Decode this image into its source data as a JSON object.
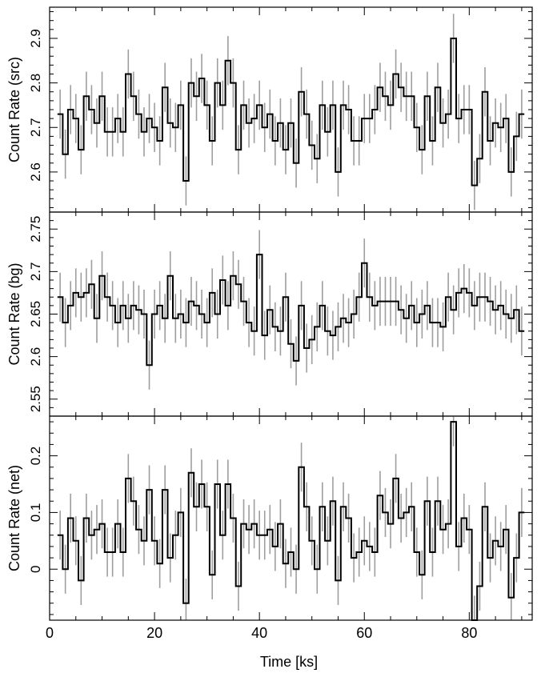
{
  "figure": {
    "xlabel": "Time [ks]"
  },
  "chart_data": [
    {
      "type": "line",
      "ylabel": "Count Rate (src)",
      "xlim": [
        0,
        92
      ],
      "ylim": [
        2.51,
        2.97
      ],
      "x_ticks": [
        0,
        20,
        40,
        60,
        80
      ],
      "y_ticks": [
        2.6,
        2.7,
        2.8,
        2.9
      ],
      "grid": false,
      "bin_width": 1,
      "x": [
        2,
        3,
        4,
        5,
        6,
        7,
        8,
        9,
        10,
        11,
        12,
        13,
        14,
        15,
        16,
        17,
        18,
        19,
        20,
        21,
        22,
        23,
        24,
        25,
        26,
        27,
        28,
        29,
        30,
        31,
        32,
        33,
        34,
        35,
        36,
        37,
        38,
        39,
        40,
        41,
        42,
        43,
        44,
        45,
        46,
        47,
        48,
        49,
        50,
        51,
        52,
        53,
        54,
        55,
        56,
        57,
        58,
        59,
        60,
        61,
        62,
        63,
        64,
        65,
        66,
        67,
        68,
        69,
        70,
        71,
        72,
        73,
        74,
        75,
        76,
        77,
        78,
        79,
        80,
        81,
        82,
        83,
        84,
        85,
        86,
        87,
        88,
        89,
        90
      ],
      "values": [
        2.73,
        2.64,
        2.74,
        2.72,
        2.65,
        2.77,
        2.74,
        2.71,
        2.77,
        2.69,
        2.69,
        2.72,
        2.69,
        2.82,
        2.77,
        2.73,
        2.69,
        2.72,
        2.7,
        2.67,
        2.79,
        2.71,
        2.7,
        2.75,
        2.58,
        2.8,
        2.77,
        2.81,
        2.75,
        2.67,
        2.8,
        2.75,
        2.85,
        2.8,
        2.65,
        2.75,
        2.71,
        2.72,
        2.75,
        2.7,
        2.73,
        2.67,
        2.71,
        2.65,
        2.71,
        2.62,
        2.78,
        2.73,
        2.66,
        2.63,
        2.75,
        2.69,
        2.75,
        2.6,
        2.75,
        2.74,
        2.67,
        2.67,
        2.72,
        2.72,
        2.74,
        2.79,
        2.77,
        2.75,
        2.82,
        2.79,
        2.77,
        2.77,
        2.7,
        2.65,
        2.77,
        2.67,
        2.79,
        2.71,
        2.73,
        2.9,
        2.72,
        2.74,
        2.74,
        2.57,
        2.63,
        2.78,
        2.67,
        2.71,
        2.7,
        2.72,
        2.6,
        2.68,
        2.73
      ]
    },
    {
      "type": "line",
      "ylabel": "Count Rate (bg)",
      "xlim": [
        0,
        92
      ],
      "ylim": [
        2.53,
        2.77
      ],
      "x_ticks": [
        0,
        20,
        40,
        60,
        80
      ],
      "y_ticks": [
        2.55,
        2.6,
        2.65,
        2.7,
        2.75
      ],
      "y_tick_labels": [
        "2.55",
        "2.6",
        "2.65",
        "2.7",
        "2.75"
      ],
      "grid": false,
      "bin_width": 1,
      "x": [
        2,
        3,
        4,
        5,
        6,
        7,
        8,
        9,
        10,
        11,
        12,
        13,
        14,
        15,
        16,
        17,
        18,
        19,
        20,
        21,
        22,
        23,
        24,
        25,
        26,
        27,
        28,
        29,
        30,
        31,
        32,
        33,
        34,
        35,
        36,
        37,
        38,
        39,
        40,
        41,
        42,
        43,
        44,
        45,
        46,
        47,
        48,
        49,
        50,
        51,
        52,
        53,
        54,
        55,
        56,
        57,
        58,
        59,
        60,
        61,
        62,
        63,
        64,
        65,
        66,
        67,
        68,
        69,
        70,
        71,
        72,
        73,
        74,
        75,
        76,
        77,
        78,
        79,
        80,
        81,
        82,
        83,
        84,
        85,
        86,
        87,
        88,
        89,
        90
      ],
      "values": [
        2.67,
        2.64,
        2.66,
        2.675,
        2.67,
        2.675,
        2.685,
        2.645,
        2.695,
        2.67,
        2.66,
        2.64,
        2.66,
        2.645,
        2.66,
        2.655,
        2.65,
        2.59,
        2.65,
        2.66,
        2.645,
        2.695,
        2.645,
        2.65,
        2.64,
        2.665,
        2.66,
        2.65,
        2.64,
        2.675,
        2.65,
        2.69,
        2.66,
        2.695,
        2.685,
        2.665,
        2.64,
        2.63,
        2.72,
        2.625,
        2.655,
        2.635,
        2.63,
        2.67,
        2.615,
        2.595,
        2.66,
        2.61,
        2.62,
        2.635,
        2.66,
        2.63,
        2.625,
        2.635,
        2.645,
        2.64,
        2.65,
        2.67,
        2.71,
        2.67,
        2.66,
        2.665,
        2.665,
        2.665,
        2.665,
        2.655,
        2.645,
        2.66,
        2.64,
        2.65,
        2.66,
        2.64,
        2.64,
        2.635,
        2.67,
        2.655,
        2.675,
        2.68,
        2.675,
        2.66,
        2.67,
        2.67,
        2.665,
        2.655,
        2.66,
        2.65,
        2.645,
        2.655,
        2.63
      ]
    },
    {
      "type": "line",
      "ylabel": "Count Rate (net)",
      "xlim": [
        0,
        92
      ],
      "ylim": [
        -0.09,
        0.27
      ],
      "x_ticks": [
        0,
        20,
        40,
        60,
        80
      ],
      "y_ticks": [
        0,
        0.1,
        0.2
      ],
      "grid": false,
      "bin_width": 1,
      "x": [
        2,
        3,
        4,
        5,
        6,
        7,
        8,
        9,
        10,
        11,
        12,
        13,
        14,
        15,
        16,
        17,
        18,
        19,
        20,
        21,
        22,
        23,
        24,
        25,
        26,
        27,
        28,
        29,
        30,
        31,
        32,
        33,
        34,
        35,
        36,
        37,
        38,
        39,
        40,
        41,
        42,
        43,
        44,
        45,
        46,
        47,
        48,
        49,
        50,
        51,
        52,
        53,
        54,
        55,
        56,
        57,
        58,
        59,
        60,
        61,
        62,
        63,
        64,
        65,
        66,
        67,
        68,
        69,
        70,
        71,
        72,
        73,
        74,
        75,
        76,
        77,
        78,
        79,
        80,
        81,
        82,
        83,
        84,
        85,
        86,
        87,
        88,
        89,
        90
      ],
      "values": [
        0.06,
        0.0,
        0.09,
        0.05,
        -0.02,
        0.09,
        0.06,
        0.07,
        0.08,
        0.03,
        0.03,
        0.08,
        0.03,
        0.16,
        0.12,
        0.07,
        0.05,
        0.14,
        0.05,
        0.01,
        0.14,
        0.02,
        0.06,
        0.1,
        -0.06,
        0.17,
        0.11,
        0.15,
        0.11,
        -0.01,
        0.15,
        0.06,
        0.15,
        0.09,
        -0.03,
        0.08,
        0.07,
        0.08,
        0.06,
        0.06,
        0.07,
        0.04,
        0.08,
        0.01,
        0.03,
        0.0,
        0.18,
        0.11,
        0.05,
        0.0,
        0.11,
        0.05,
        0.12,
        -0.02,
        0.11,
        0.09,
        0.02,
        0.03,
        0.05,
        0.04,
        0.03,
        0.13,
        0.1,
        0.08,
        0.16,
        0.09,
        0.1,
        0.11,
        0.03,
        -0.01,
        0.12,
        0.03,
        0.12,
        0.07,
        0.08,
        0.26,
        0.04,
        0.09,
        0.07,
        -0.09,
        -0.03,
        0.11,
        0.02,
        0.05,
        0.04,
        0.07,
        -0.05,
        0.02,
        0.1
      ]
    }
  ]
}
